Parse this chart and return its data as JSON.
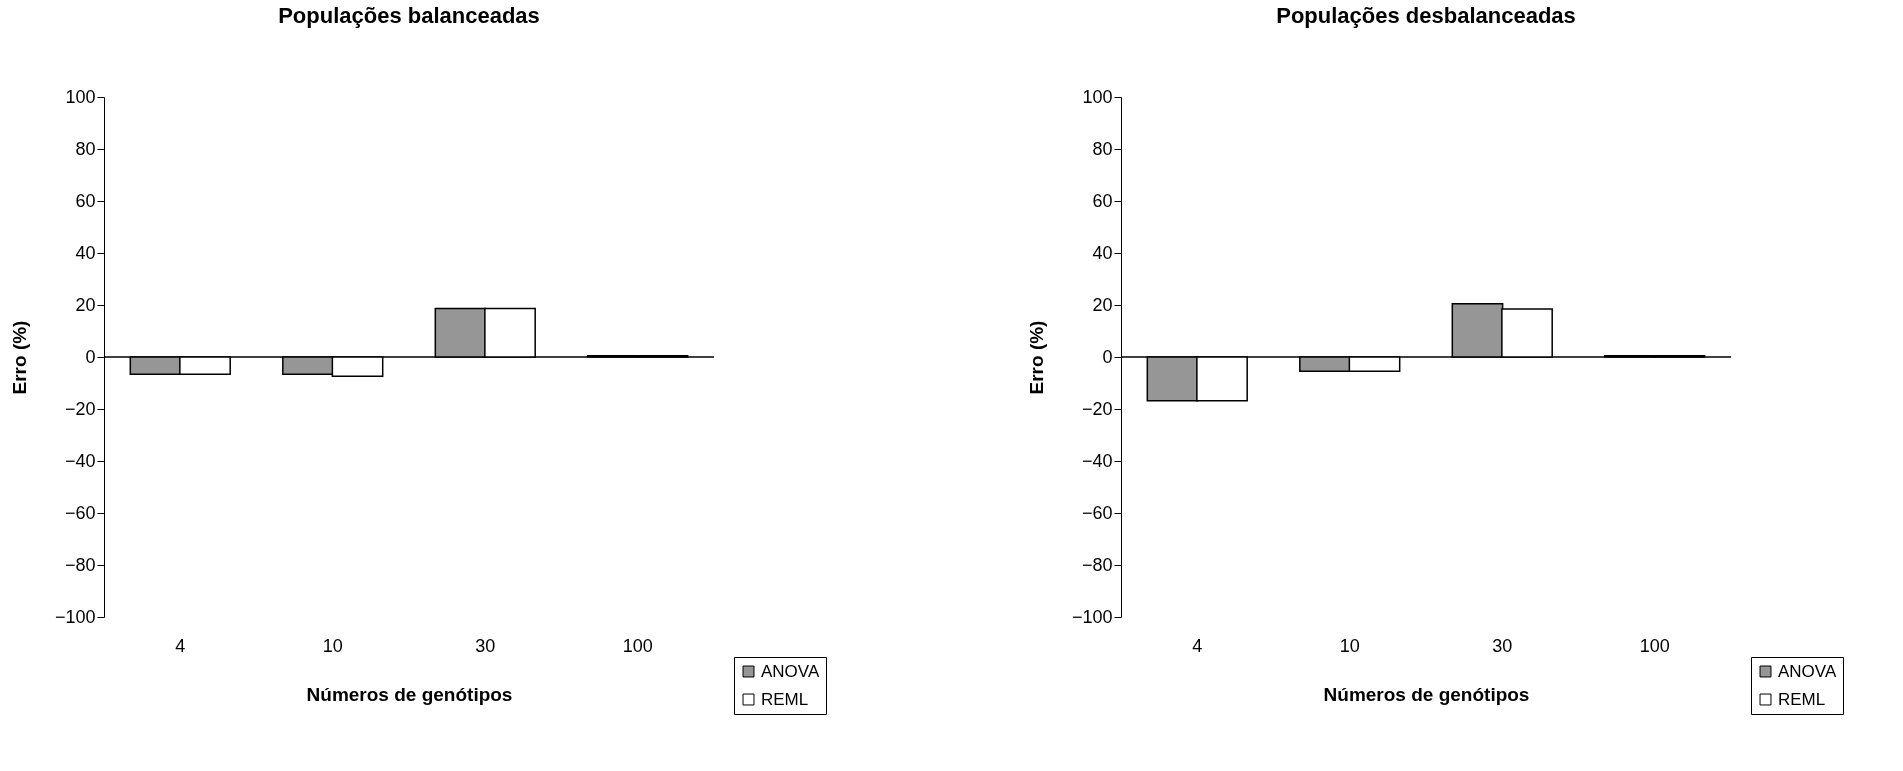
{
  "chart_data": [
    {
      "type": "bar",
      "title": "Populações balanceadas",
      "xlabel": "Números de genótipos",
      "ylabel": "Erro (%)",
      "categories": [
        "4",
        "10",
        "30",
        "100"
      ],
      "ylim": [
        -100,
        100
      ],
      "yticks": [
        -100,
        -80,
        -60,
        -40,
        -20,
        0,
        20,
        40,
        60,
        80,
        100
      ],
      "legend": "bottom right",
      "series": [
        {
          "name": "ANOVA",
          "color": "#969696",
          "values": [
            -6.6,
            -6.6,
            18.7,
            0.5
          ]
        },
        {
          "name": "REML",
          "color": "#ffffff",
          "values": [
            -6.6,
            -7.4,
            18.7,
            0.5
          ]
        }
      ]
    },
    {
      "type": "bar",
      "title": "Populações desbalanceadas",
      "xlabel": "Números de genótipos",
      "ylabel": "Erro (%)",
      "categories": [
        "4",
        "10",
        "30",
        "100"
      ],
      "ylim": [
        -100,
        100
      ],
      "yticks": [
        -100,
        -80,
        -60,
        -40,
        -20,
        0,
        20,
        40,
        60,
        80,
        100
      ],
      "legend": "bottom right",
      "series": [
        {
          "name": "ANOVA",
          "color": "#969696",
          "values": [
            -16.8,
            -5.5,
            20.5,
            0.5
          ]
        },
        {
          "name": "REML",
          "color": "#ffffff",
          "values": [
            -16.8,
            -5.5,
            18.5,
            0.5
          ]
        }
      ]
    }
  ]
}
